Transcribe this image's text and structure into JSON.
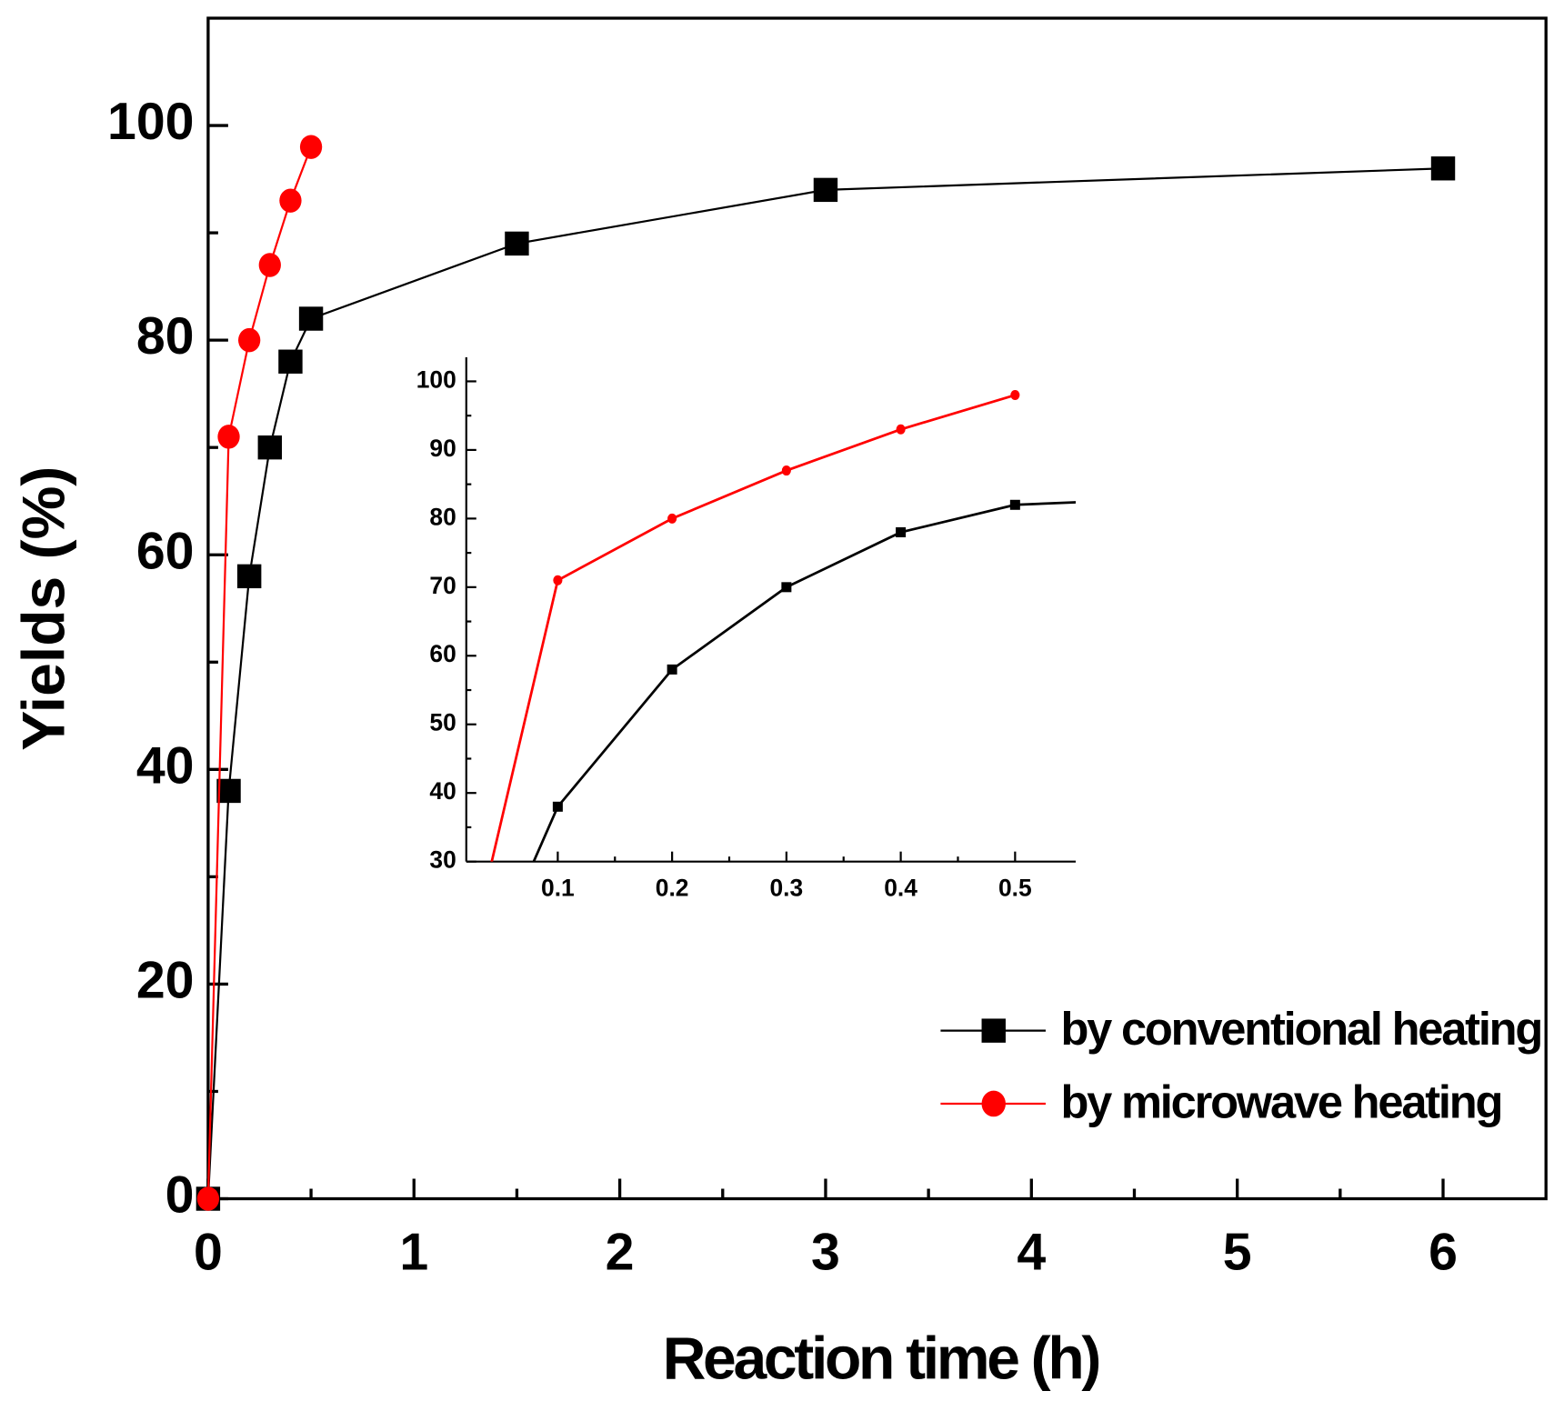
{
  "chart_data": {
    "type": "line",
    "xlabel": "Reaction time (h)",
    "ylabel": "Yields (%)",
    "xlim": [
      0,
      6.5
    ],
    "ylim": [
      0,
      110
    ],
    "xticks": [
      0,
      1,
      2,
      3,
      4,
      5,
      6
    ],
    "yticks": [
      0,
      20,
      40,
      60,
      80,
      100
    ],
    "legend": "lower right",
    "series": [
      {
        "name": "by conventional heating",
        "color": "#000000",
        "marker": "square",
        "x": [
          0,
          0.1,
          0.2,
          0.3,
          0.4,
          0.5,
          1.5,
          3,
          6
        ],
        "values": [
          0,
          38,
          58,
          70,
          78,
          82,
          89,
          94,
          96
        ]
      },
      {
        "name": "by microwave heating",
        "color": "#ff0000",
        "marker": "circle",
        "x": [
          0,
          0.1,
          0.2,
          0.3,
          0.4,
          0.5
        ],
        "values": [
          0,
          71,
          80,
          87,
          93,
          98
        ]
      }
    ],
    "inset": {
      "xlim": [
        0.02,
        0.553
      ],
      "ylim": [
        30,
        103.5
      ],
      "xticks": [
        0.1,
        0.2,
        0.3,
        0.4,
        0.5
      ],
      "yticks": [
        30,
        40,
        50,
        60,
        70,
        80,
        90,
        100
      ]
    }
  }
}
